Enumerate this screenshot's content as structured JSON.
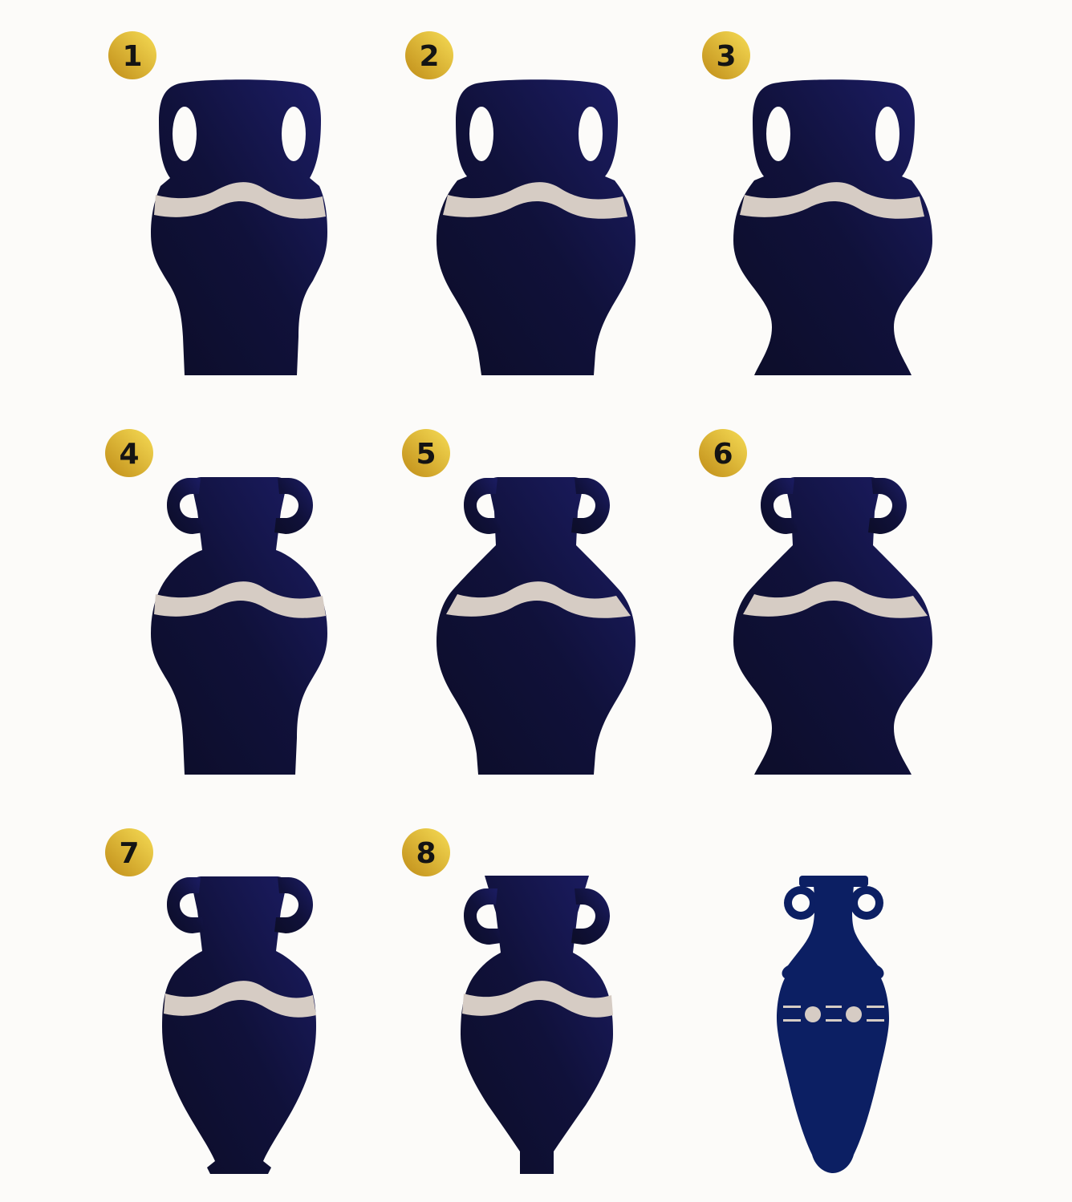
{
  "colors": {
    "background": "#fcfbf9",
    "vase_light": "#1c1d66",
    "vase_dark": "#0e0f2e",
    "band": "#d6ccc4",
    "badge_light": "#f3d34a",
    "badge_dark": "#c9961b",
    "badge_text": "#141414",
    "ref_vase": "#0c1f63"
  },
  "badges": [
    {
      "id": "vase-1",
      "label": "1"
    },
    {
      "id": "vase-2",
      "label": "2"
    },
    {
      "id": "vase-3",
      "label": "3"
    },
    {
      "id": "vase-4",
      "label": "4"
    },
    {
      "id": "vase-5",
      "label": "5"
    },
    {
      "id": "vase-6",
      "label": "6"
    },
    {
      "id": "vase-7",
      "label": "7"
    },
    {
      "id": "vase-8",
      "label": "8"
    }
  ],
  "reference_vase": {
    "icon": "amphora-reference-icon"
  }
}
